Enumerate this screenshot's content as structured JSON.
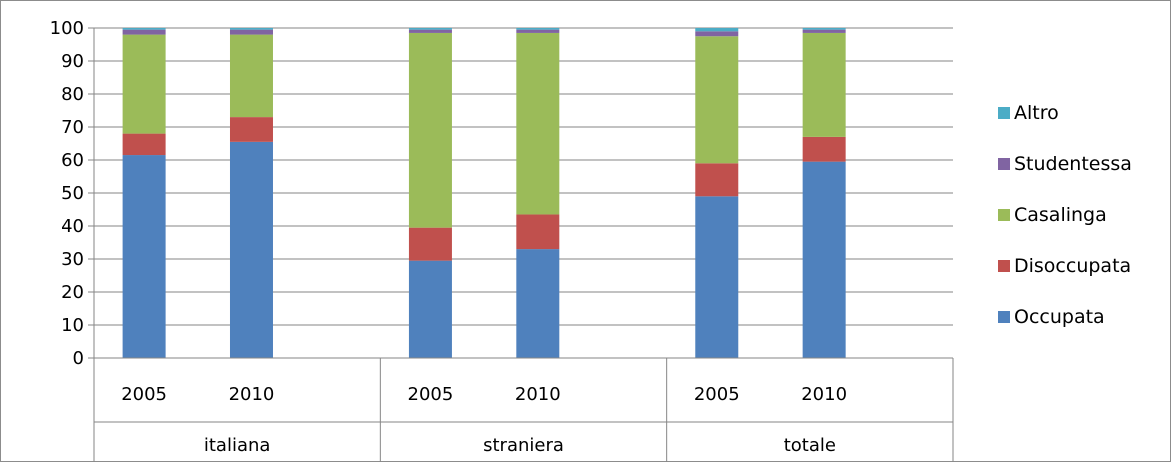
{
  "chart_data": {
    "type": "bar",
    "stacked": true,
    "groups": [
      {
        "name": "italiana",
        "categories": [
          "2005",
          "2010"
        ]
      },
      {
        "name": "straniera",
        "categories": [
          "2005",
          "2010"
        ]
      },
      {
        "name": "totale",
        "categories": [
          "2005",
          "2010"
        ]
      }
    ],
    "categories": [
      "2005",
      "2010",
      "2005",
      "2010",
      "2005",
      "2010"
    ],
    "series": [
      {
        "name": "Occupata",
        "color": "#4F81BD",
        "values": [
          61.5,
          65.5,
          29.5,
          33.0,
          49.0,
          59.5
        ]
      },
      {
        "name": "Disoccupata",
        "color": "#C0504D",
        "values": [
          6.5,
          7.5,
          10.0,
          10.5,
          10.0,
          7.5
        ]
      },
      {
        "name": "Casalinga",
        "color": "#9BBB59",
        "values": [
          30.0,
          25.0,
          59.0,
          55.0,
          38.5,
          31.5
        ]
      },
      {
        "name": "Studentessa",
        "color": "#8064A2",
        "values": [
          1.5,
          1.5,
          1.0,
          1.0,
          1.5,
          1.0
        ]
      },
      {
        "name": "Altro",
        "color": "#4BACC6",
        "values": [
          0.5,
          0.5,
          0.5,
          0.5,
          1.0,
          0.5
        ]
      }
    ],
    "ylim": [
      0,
      100
    ],
    "yticks": [
      0,
      10,
      20,
      30,
      40,
      50,
      60,
      70,
      80,
      90,
      100
    ],
    "legend_position": "right",
    "grid": true,
    "title": "",
    "xlabel": "",
    "ylabel": ""
  }
}
